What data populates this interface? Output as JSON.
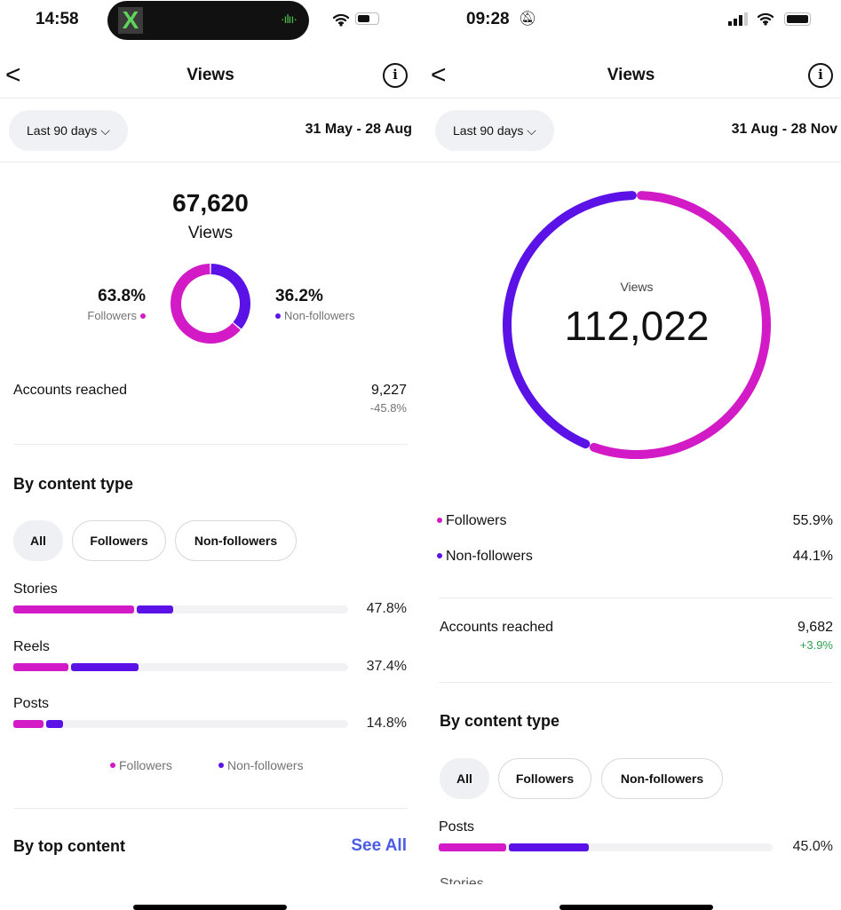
{
  "colors": {
    "followers": "#d21bc6",
    "non_followers": "#5a12e6",
    "link": "#4a5de6",
    "positive": "#2e9e4f"
  },
  "left": {
    "status": {
      "time": "14:58",
      "island_app": "X",
      "icons": [
        "wifi-icon",
        "battery-icon"
      ]
    },
    "header": {
      "title": "Views"
    },
    "filter": {
      "label": "Last 90 days",
      "date_range": "31 May - 28 Aug"
    },
    "summary": {
      "total": "67,620",
      "label": "Views",
      "followers_pct": "63.8%",
      "followers_label": "Followers",
      "non_followers_pct": "36.2%",
      "non_followers_label": "Non-followers",
      "followers_share": 63.8,
      "non_followers_share": 36.2
    },
    "accounts": {
      "label": "Accounts reached",
      "value": "9,227",
      "change": "-45.8%"
    },
    "content_type": {
      "title": "By content type",
      "chips": [
        "All",
        "Followers",
        "Non-followers"
      ],
      "rows": [
        {
          "label": "Stories",
          "pct": "47.8%",
          "followers": 36.6,
          "non_followers": 11.2
        },
        {
          "label": "Reels",
          "pct": "37.4%",
          "followers": 17.1,
          "non_followers": 20.3
        },
        {
          "label": "Posts",
          "pct": "14.8%",
          "followers": 9.5,
          "non_followers": 5.3
        }
      ],
      "legend": [
        "Followers",
        "Non-followers"
      ]
    },
    "top_content": {
      "title": "By top content",
      "see_all": "See All"
    }
  },
  "right": {
    "status": {
      "time": "09:28",
      "icons": [
        "bell-slash-icon",
        "signal-icon",
        "wifi-icon",
        "battery-icon"
      ]
    },
    "header": {
      "title": "Views"
    },
    "filter": {
      "label": "Last 90 days",
      "date_range": "31 Aug - 28 Nov"
    },
    "summary": {
      "label": "Views",
      "total": "112,022",
      "followers_share": 55.9,
      "non_followers_share": 44.1
    },
    "legend": [
      {
        "label": "Followers",
        "pct": "55.9%"
      },
      {
        "label": "Non-followers",
        "pct": "44.1%"
      }
    ],
    "accounts": {
      "label": "Accounts reached",
      "value": "9,682",
      "change": "+3.9%"
    },
    "content_type": {
      "title": "By content type",
      "chips": [
        "All",
        "Followers",
        "Non-followers"
      ],
      "rows": [
        {
          "label": "Posts",
          "pct": "45.0%",
          "followers": 20.7,
          "non_followers": 24.3
        }
      ],
      "next_row_partial": "Stories"
    }
  }
}
